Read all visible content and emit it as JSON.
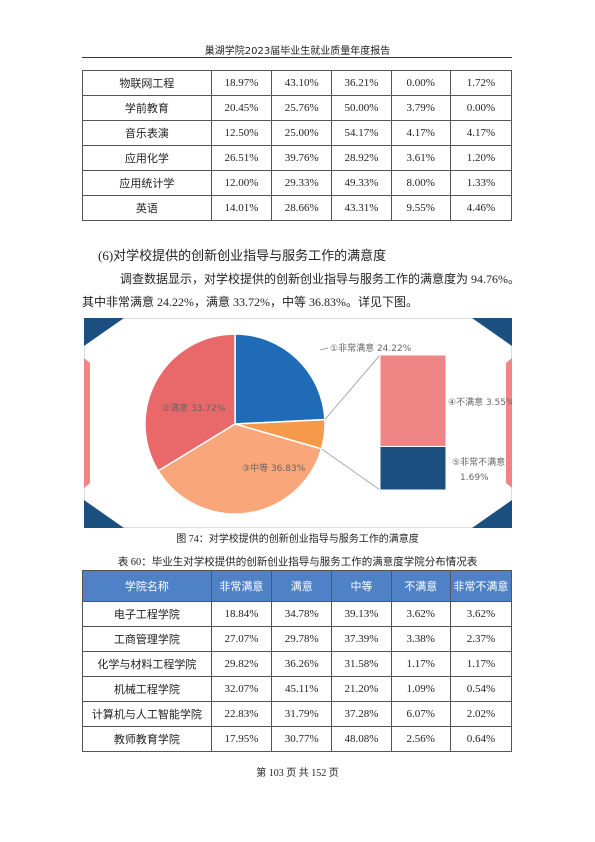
{
  "header": "巢湖学院2023届毕业生就业质量年度报告",
  "table1": {
    "rows": [
      [
        "物联网工程",
        "18.97%",
        "43.10%",
        "36.21%",
        "0.00%",
        "1.72%"
      ],
      [
        "学前教育",
        "20.45%",
        "25.76%",
        "50.00%",
        "3.79%",
        "0.00%"
      ],
      [
        "音乐表演",
        "12.50%",
        "25.00%",
        "54.17%",
        "4.17%",
        "4.17%"
      ],
      [
        "应用化学",
        "26.51%",
        "39.76%",
        "28.92%",
        "3.61%",
        "1.20%"
      ],
      [
        "应用统计学",
        "12.00%",
        "29.33%",
        "49.33%",
        "8.00%",
        "1.33%"
      ],
      [
        "英语",
        "14.01%",
        "28.66%",
        "43.31%",
        "9.55%",
        "4.46%"
      ]
    ]
  },
  "section": {
    "heading": "(6)对学校提供的创新创业指导与服务工作的满意度",
    "lines": [
      "调查数据显示，对学校提供的创新创业指导与服务工作的满意度为 94.76%。",
      "其中非常满意 24.22%，满意 33.72%，中等 36.83%。详见下图。"
    ]
  },
  "figure": {
    "type": "pie",
    "pie_slices": [
      {
        "label": "①非常满意",
        "value": 24.22,
        "value_label": "24.22%",
        "color": "#1f6bb5"
      },
      {
        "label": "③中等",
        "value": 36.83,
        "value_label": "36.83%",
        "color": "#f9a67a"
      },
      {
        "label": "②满意",
        "value": 33.72,
        "value_label": "33.72%",
        "color": "#e9686a"
      }
    ],
    "bar_slices": [
      {
        "label": "④不满意",
        "value": 3.55,
        "value_label": "3.55%",
        "color": "#f08585"
      },
      {
        "label": "⑤非常不满意",
        "value": 1.69,
        "value_label": "1.69%",
        "color": "#1a4f80"
      }
    ],
    "caption": "图 74：对学校提供的创新创业指导与服务工作的满意度"
  },
  "table2": {
    "title": "表 60：毕业生对学校提供的创新创业指导与服务工作的满意度学院分布情况表",
    "columns": [
      "学院名称",
      "非常满意",
      "满意",
      "中等",
      "不满意",
      "非常不满意"
    ],
    "rows": [
      [
        "电子工程学院",
        "18.84%",
        "34.78%",
        "39.13%",
        "3.62%",
        "3.62%"
      ],
      [
        "工商管理学院",
        "27.07%",
        "29.78%",
        "37.39%",
        "3.38%",
        "2.37%"
      ],
      [
        "化学与材料工程学院",
        "29.82%",
        "36.26%",
        "31.58%",
        "1.17%",
        "1.17%"
      ],
      [
        "机械工程学院",
        "32.07%",
        "45.11%",
        "21.20%",
        "1.09%",
        "0.54%"
      ],
      [
        "计算机与人工智能学院",
        "22.83%",
        "31.79%",
        "37.28%",
        "6.07%",
        "2.02%"
      ],
      [
        "教师教育学院",
        "17.95%",
        "30.77%",
        "48.08%",
        "2.56%",
        "0.64%"
      ]
    ]
  },
  "footer": "第 103 页 共 152 页"
}
